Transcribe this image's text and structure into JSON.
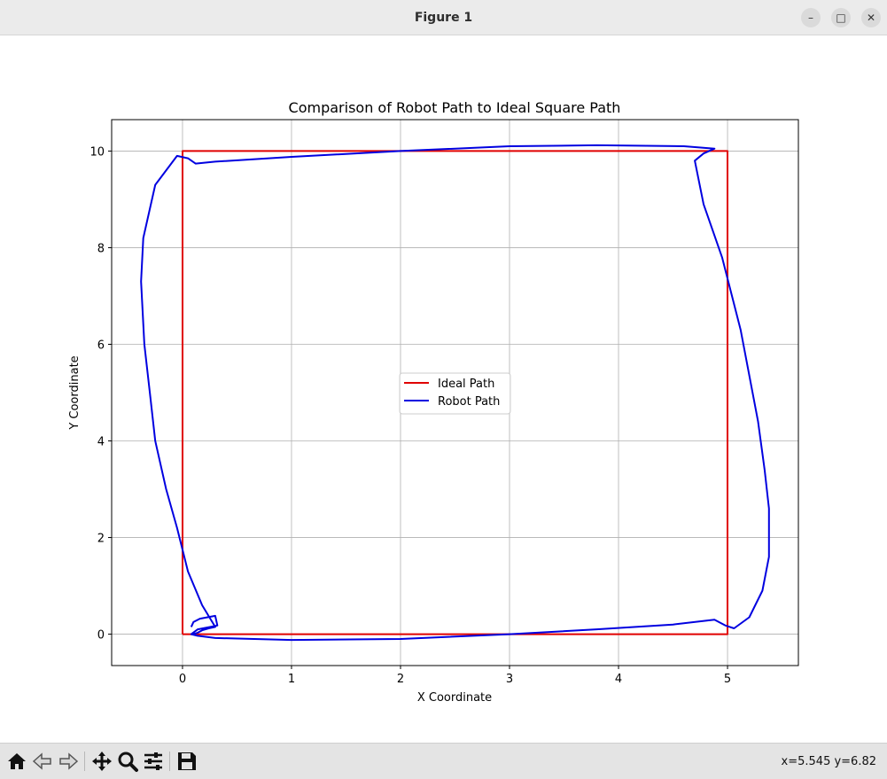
{
  "window": {
    "title": "Figure 1"
  },
  "toolbar": {
    "coords": "x=5.545 y=6.82"
  },
  "colors": {
    "ideal": "#e00000",
    "robot": "#0000e0",
    "grid": "#b0b0b0"
  },
  "chart_data": {
    "type": "line",
    "title": "Comparison of Robot Path to Ideal Square Path",
    "xlabel": "X Coordinate",
    "ylabel": "Y Coordinate",
    "xlim": [
      -0.65,
      5.65
    ],
    "ylim": [
      -0.65,
      10.65
    ],
    "xticks": [
      0,
      1,
      2,
      3,
      4,
      5
    ],
    "yticks": [
      0,
      2,
      4,
      6,
      8,
      10
    ],
    "grid": true,
    "legend_position": "center",
    "series": [
      {
        "name": "Ideal Path",
        "color": "#e00000",
        "x": [
          0,
          5,
          5,
          0,
          0
        ],
        "y": [
          0,
          0,
          10,
          10,
          0
        ]
      },
      {
        "name": "Robot Path",
        "color": "#0000e0",
        "x": [
          0.08,
          0.1,
          0.16,
          0.3,
          0.32,
          0.14,
          0.08,
          0.13,
          0.3,
          1.0,
          2.0,
          3.0,
          3.8,
          4.5,
          4.88,
          4.98,
          5.06,
          5.2,
          5.32,
          5.38,
          5.38,
          5.34,
          5.28,
          5.12,
          4.95,
          4.78,
          4.7,
          4.78,
          4.88,
          4.6,
          3.8,
          3.0,
          2.0,
          1.0,
          0.3,
          0.12,
          0.05,
          -0.05,
          -0.25,
          -0.36,
          -0.38,
          -0.35,
          -0.3,
          -0.25,
          -0.15,
          -0.05,
          0.05,
          0.18,
          0.3,
          0.24,
          0.18,
          0.14,
          0.1
        ],
        "y": [
          0.15,
          0.25,
          0.32,
          0.38,
          0.18,
          0.1,
          0.0,
          -0.03,
          -0.08,
          -0.12,
          -0.1,
          0.0,
          0.1,
          0.2,
          0.3,
          0.18,
          0.12,
          0.35,
          0.9,
          1.6,
          2.6,
          3.4,
          4.4,
          6.3,
          7.8,
          8.9,
          9.8,
          9.95,
          10.05,
          10.1,
          10.12,
          10.1,
          10.0,
          9.88,
          9.78,
          9.74,
          9.85,
          9.9,
          9.3,
          8.2,
          7.3,
          6.0,
          5.0,
          4.0,
          3.0,
          2.2,
          1.3,
          0.6,
          0.15,
          0.12,
          0.08,
          0.03,
          0.0
        ]
      }
    ]
  }
}
